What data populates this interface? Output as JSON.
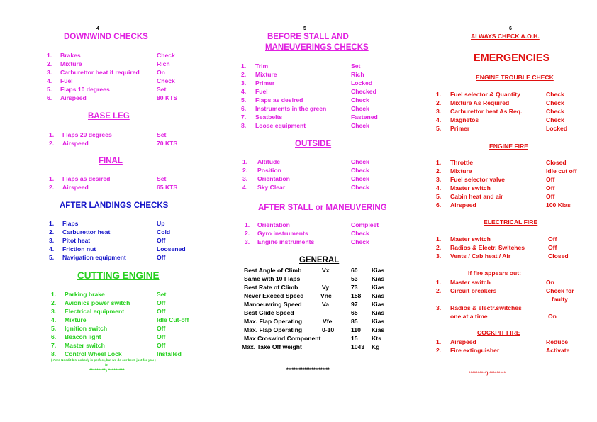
{
  "col1": {
    "page": "4",
    "downwind": {
      "title": "DOWNWIND  CHECKS",
      "items": [
        {
          "n": "1.",
          "item": "Brakes",
          "value": "Check"
        },
        {
          "n": "2.",
          "item": "Mixture",
          "value": "Rich"
        },
        {
          "n": "3.",
          "item": "Carburettor heat if required",
          "value": "On"
        },
        {
          "n": "4.",
          "item": "Fuel",
          "value": "Check"
        },
        {
          "n": "5.",
          "item": "Flaps 10 degrees",
          "value": "Set"
        },
        {
          "n": "6.",
          "item": "Airspeed",
          "value": "80 KTS"
        }
      ]
    },
    "base": {
      "title": "BASE LEG",
      "items": [
        {
          "n": "1.",
          "item": "Flaps 20 degrees",
          "value": "Set"
        },
        {
          "n": "2.",
          "item": "Airspeed",
          "value": "70 KTS"
        }
      ]
    },
    "final": {
      "title": "FINAL",
      "items": [
        {
          "n": "1.",
          "item": "Flaps as desired",
          "value": "Set"
        },
        {
          "n": "2.",
          "item": "Airspeed",
          "value": "65 KTS"
        }
      ]
    },
    "after_landing": {
      "title": "AFTER LANDINGS CHECKS",
      "items": [
        {
          "n": "1.",
          "item": "Flaps",
          "value": "Up"
        },
        {
          "n": "2.",
          "item": "Carburettor heat",
          "value": "Cold"
        },
        {
          "n": "3.",
          "item": "Pitot heat",
          "value": "Off"
        },
        {
          "n": "4.",
          "item": "Friction nut",
          "value": "Loosened"
        },
        {
          "n": "5.",
          "item": "Navigation equipment",
          "value": "Off"
        }
      ]
    },
    "cutting": {
      "title": "CUTTING ENGINE",
      "items": [
        {
          "n": "1.",
          "item": "Parking brake",
          "value": "Set"
        },
        {
          "n": "2.",
          "item": "Avionics power switch",
          "value": "Off"
        },
        {
          "n": "3.",
          "item": "Electrical equipment",
          "value": "Off"
        },
        {
          "n": "4.",
          "item": "Mixture",
          "value": "Idle Cut-off"
        },
        {
          "n": "5.",
          "item": "Ignition switch",
          "value": "Off"
        },
        {
          "n": "6.",
          "item": "Beacon light",
          "value": "Off"
        },
        {
          "n": "7.",
          "item": "Master switch",
          "value": "Off"
        },
        {
          "n": "8.",
          "item": "Control Wheel Lock",
          "value": "Installed"
        }
      ]
    },
    "footnote": "( Aero Noodit b.V nobody is perfect, but we do our best, just for you )",
    "footnote2": "/2",
    "stars": "*********) *********"
  },
  "col2": {
    "page": "5",
    "before_stall": {
      "title1": "BEFORE STALL AND",
      "title2": "MANEUVERINGS CHECKS",
      "items": [
        {
          "n": "1.",
          "item": "Trim",
          "value": "Set"
        },
        {
          "n": "2.",
          "item": "Mixture",
          "value": "Rich"
        },
        {
          "n": "3.",
          "item": "Primer",
          "value": "Locked"
        },
        {
          "n": "4.",
          "item": "Fuel",
          "value": "Checked"
        },
        {
          "n": "5.",
          "item": "Flaps as desired",
          "value": "Check"
        },
        {
          "n": "6.",
          "item": "Instruments in the green",
          "value": "Check"
        },
        {
          "n": "7.",
          "item": "Seatbelts",
          "value": "Fastened"
        },
        {
          "n": "8.",
          "item": "Loose equipment",
          "value": "Check"
        }
      ]
    },
    "outside": {
      "title": "OUTSIDE",
      "items": [
        {
          "n": "1.",
          "item": "Altitude",
          "value": "Check"
        },
        {
          "n": "2.",
          "item": "Position",
          "value": "Check"
        },
        {
          "n": "3.",
          "item": "Orientation",
          "value": "Check"
        },
        {
          "n": "4.",
          "item": "Sky Clear",
          "value": "Check"
        }
      ]
    },
    "after_stall": {
      "title": "AFTER STALL or MANEUVERING",
      "items": [
        {
          "n": "1.",
          "item": "Orientation",
          "value": "Compleet"
        },
        {
          "n": "2.",
          "item": "Gyro instruments",
          "value": "Check"
        },
        {
          "n": "3.",
          "item": "Engine instruments",
          "value": "Check"
        }
      ]
    },
    "general": {
      "title": "GENERAL",
      "items": [
        {
          "item": "Best Angle of Climb",
          "code": "Vx",
          "num": "60",
          "unit": "Kias"
        },
        {
          "item": "Same with 10  Flaps",
          "code": "",
          "num": "53",
          "unit": "Kias"
        },
        {
          "item": "Best Rate of Climb",
          "code": "Vy",
          "num": "73",
          "unit": "Kias"
        },
        {
          "item": "Never Exceed Speed",
          "code": "Vne",
          "num": "158",
          "unit": "Kias"
        },
        {
          "item": "Manoeuvring Speed",
          "code": "Va",
          "num": "97",
          "unit": "Kias"
        },
        {
          "item": "Best Glide Speed",
          "code": "",
          "num": "65",
          "unit": "Kias"
        },
        {
          "item": "Max. Flap Operating",
          "code": "Vfe",
          "num": "85",
          "unit": "Kias"
        },
        {
          "item": "Max. Flap Operating",
          "code": "0-10",
          "num": "110",
          "unit": "Kias"
        },
        {
          "item": "Max Croswind  Component",
          "code": "",
          "num": "15",
          "unit": "Kts"
        },
        {
          "item": "Max. Take Off weight",
          "code": "",
          "num": "1043",
          "unit": "Kg"
        }
      ]
    },
    "stars": "************************"
  },
  "col3": {
    "page": "6",
    "always": "ALWAYS CHECK  A.O.H.",
    "emergencies": "EMERGENCIES",
    "engine_trouble": {
      "title": "ENGINE TROUBLE CHECK",
      "items": [
        {
          "n": "1.",
          "item": "Fuel selector & Quantity",
          "value": "Check"
        },
        {
          "n": "2.",
          "item": "Mixture As Required",
          "value": "Check"
        },
        {
          "n": "3.",
          "item": "Carburettor heat As Req.",
          "value": "Check"
        },
        {
          "n": "4.",
          "item": "Magnetos",
          "value": "Check"
        },
        {
          "n": "5.",
          "item": "Primer",
          "value": "Locked"
        }
      ]
    },
    "engine_fire": {
      "title": "ENGINE FIRE",
      "items": [
        {
          "n": "1.",
          "item": "Throttle",
          "value": "Closed"
        },
        {
          "n": "2.",
          "item": "Mixture",
          "value": "Idle cut off"
        },
        {
          "n": "3.",
          "item": "Fuel selector valve",
          "value": "Off"
        },
        {
          "n": "4.",
          "item": "Master switch",
          "value": "Off"
        },
        {
          "n": "5.",
          "item": "Cabin heat and air",
          "value": "Off"
        },
        {
          "n": "6.",
          "item": "Airspeed",
          "value": "100 Kias"
        }
      ]
    },
    "electrical_fire": {
      "title": "ELECTRICAL FIRE",
      "items": [
        {
          "n": "1.",
          "item": "Master switch",
          "value": "Off"
        },
        {
          "n": "2.",
          "item": "Radios & Electr. Switches",
          "value": "Off"
        },
        {
          "n": "3.",
          "item": "Vents /  Cab heat / Air",
          "value": "Closed"
        }
      ]
    },
    "if_fire": {
      "title": "If fire appears out:",
      "items": [
        {
          "n": "1.",
          "item": "Master switch",
          "value": "On"
        },
        {
          "n": "2.",
          "item": "Circuit breakers",
          "value": "Check for"
        },
        {
          "n": "",
          "item": "",
          "value": "faulty"
        },
        {
          "n": "3.",
          "item": "Radios & electr.switches",
          "value": ""
        },
        {
          "n": "",
          "item": "one at a time",
          "value": "On"
        }
      ]
    },
    "cockpit_fire": {
      "title": "COCKPIT FIRE",
      "items": [
        {
          "n": "1.",
          "item": "Airspeed",
          "value": "Reduce"
        },
        {
          "n": "2.",
          "item": "Fire extinguisher",
          "value": "Activate"
        }
      ]
    },
    "stars": "**********) *********"
  }
}
